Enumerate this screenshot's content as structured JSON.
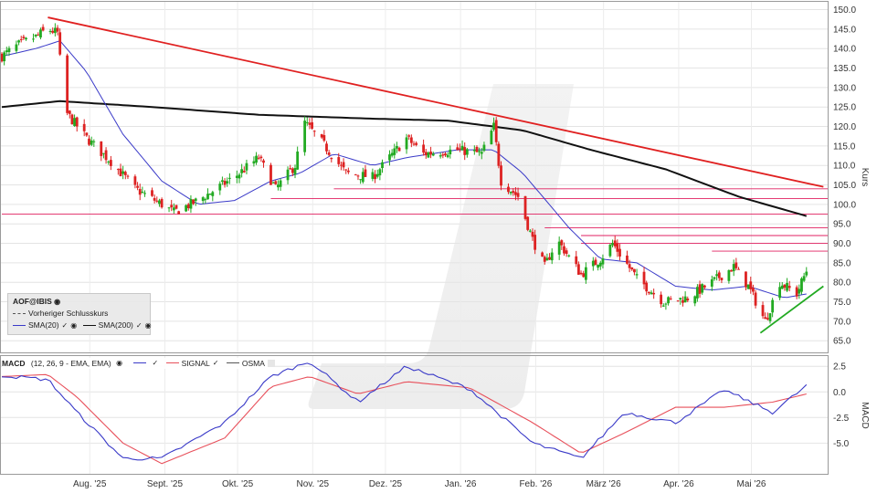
{
  "chart_data": [
    {
      "type": "candlestick",
      "ylabel": "Kurs",
      "ylim": [
        62,
        152
      ],
      "y_ticks": [
        "150.0",
        "145.0",
        "140.0",
        "135.0",
        "130.0",
        "125.0",
        "120.0",
        "115.0",
        "110.0",
        "105.0",
        "100.0",
        "95.0",
        "90.0",
        "85.0",
        "80.0",
        "75.0",
        "70.0",
        "65.0"
      ],
      "x_ticks": [
        "Aug. '25",
        "Sept. '25",
        "Okt. '25",
        "Nov. '25",
        "Dez. '25",
        "Jan. '26",
        "Feb. '26",
        "März '26",
        "Apr. '26",
        "Mai '26"
      ],
      "close_key": [
        {
          "date": "2025-07-01",
          "value": 138
        },
        {
          "date": "2025-07-08",
          "value": 141
        },
        {
          "date": "2025-07-15",
          "value": 143
        },
        {
          "date": "2025-07-20",
          "value": 145
        },
        {
          "date": "2025-07-24",
          "value": 144
        },
        {
          "date": "2025-07-27",
          "value": 124
        },
        {
          "date": "2025-08-05",
          "value": 117
        },
        {
          "date": "2025-08-15",
          "value": 111
        },
        {
          "date": "2025-08-25",
          "value": 104
        },
        {
          "date": "2025-09-05",
          "value": 100
        },
        {
          "date": "2025-09-10",
          "value": 98
        },
        {
          "date": "2025-09-20",
          "value": 101
        },
        {
          "date": "2025-10-05",
          "value": 107
        },
        {
          "date": "2025-10-15",
          "value": 112
        },
        {
          "date": "2025-10-22",
          "value": 104
        },
        {
          "date": "2025-10-30",
          "value": 110
        },
        {
          "date": "2025-11-03",
          "value": 121
        },
        {
          "date": "2025-11-10",
          "value": 116
        },
        {
          "date": "2025-11-20",
          "value": 108
        },
        {
          "date": "2025-12-01",
          "value": 107
        },
        {
          "date": "2025-12-08",
          "value": 112
        },
        {
          "date": "2025-12-15",
          "value": 117
        },
        {
          "date": "2025-12-22",
          "value": 113
        },
        {
          "date": "2026-01-05",
          "value": 114
        },
        {
          "date": "2026-01-15",
          "value": 113
        },
        {
          "date": "2026-01-20",
          "value": 120
        },
        {
          "date": "2026-01-23",
          "value": 106
        },
        {
          "date": "2026-01-30",
          "value": 102
        },
        {
          "date": "2026-02-05",
          "value": 91
        },
        {
          "date": "2026-02-10",
          "value": 84
        },
        {
          "date": "2026-02-15",
          "value": 91
        },
        {
          "date": "2026-02-25",
          "value": 82
        },
        {
          "date": "2026-03-05",
          "value": 86
        },
        {
          "date": "2026-03-10",
          "value": 90
        },
        {
          "date": "2026-03-20",
          "value": 81
        },
        {
          "date": "2026-03-31",
          "value": 75
        },
        {
          "date": "2026-04-10",
          "value": 76
        },
        {
          "date": "2026-04-20",
          "value": 80
        },
        {
          "date": "2026-04-29",
          "value": 84
        },
        {
          "date": "2026-05-05",
          "value": 79
        },
        {
          "date": "2026-05-12",
          "value": 70
        },
        {
          "date": "2026-05-18",
          "value": 80
        },
        {
          "date": "2026-05-25",
          "value": 77
        },
        {
          "date": "2026-05-29",
          "value": 83
        }
      ],
      "sma20_key": [
        {
          "date": "2025-07-01",
          "value": 138
        },
        {
          "date": "2025-07-15",
          "value": 140
        },
        {
          "date": "2025-07-25",
          "value": 142
        },
        {
          "date": "2025-08-05",
          "value": 134
        },
        {
          "date": "2025-08-20",
          "value": 118
        },
        {
          "date": "2025-09-05",
          "value": 106
        },
        {
          "date": "2025-09-20",
          "value": 100
        },
        {
          "date": "2025-10-05",
          "value": 101
        },
        {
          "date": "2025-10-20",
          "value": 106
        },
        {
          "date": "2025-11-01",
          "value": 108
        },
        {
          "date": "2025-11-15",
          "value": 113
        },
        {
          "date": "2025-12-01",
          "value": 110
        },
        {
          "date": "2025-12-15",
          "value": 112
        },
        {
          "date": "2026-01-05",
          "value": 114
        },
        {
          "date": "2026-01-20",
          "value": 114
        },
        {
          "date": "2026-02-01",
          "value": 108
        },
        {
          "date": "2026-02-20",
          "value": 94
        },
        {
          "date": "2026-03-05",
          "value": 86
        },
        {
          "date": "2026-03-20",
          "value": 85
        },
        {
          "date": "2026-04-05",
          "value": 79
        },
        {
          "date": "2026-04-20",
          "value": 78
        },
        {
          "date": "2026-05-05",
          "value": 79
        },
        {
          "date": "2026-05-20",
          "value": 76
        },
        {
          "date": "2026-05-29",
          "value": 77
        }
      ],
      "sma200_key": [
        {
          "date": "2025-07-01",
          "value": 125
        },
        {
          "date": "2025-07-25",
          "value": 126.5
        },
        {
          "date": "2025-09-01",
          "value": 125
        },
        {
          "date": "2025-10-15",
          "value": 123
        },
        {
          "date": "2025-12-01",
          "value": 122
        },
        {
          "date": "2026-01-01",
          "value": 121.5
        },
        {
          "date": "2026-02-01",
          "value": 119
        },
        {
          "date": "2026-03-01",
          "value": 114
        },
        {
          "date": "2026-04-01",
          "value": 109
        },
        {
          "date": "2026-05-01",
          "value": 102
        },
        {
          "date": "2026-05-29",
          "value": 97
        }
      ],
      "trendlines": [
        {
          "color": "#e02020",
          "from": {
            "date": "2025-07-20",
            "value": 148
          },
          "to": {
            "date": "2026-06-05",
            "value": 104.5
          }
        },
        {
          "color": "#22aa22",
          "from": {
            "date": "2026-05-10",
            "value": 67
          },
          "to": {
            "date": "2026-06-05",
            "value": 79
          }
        }
      ],
      "support_lines": [
        {
          "from": "2025-10-20",
          "value": 101.5
        },
        {
          "from": "2025-11-15",
          "value": 104
        },
        {
          "from": "2025-07-01",
          "value": 97.5
        },
        {
          "from": "2026-02-10",
          "value": 94
        },
        {
          "from": "2026-02-25",
          "value": 92
        },
        {
          "from": "2026-02-25",
          "value": 90
        },
        {
          "from": "2026-04-20",
          "value": 88
        }
      ]
    },
    {
      "type": "line",
      "ylabel": "MACD",
      "ylim": [
        -8,
        3.5
      ],
      "y_ticks": [
        "2.5",
        "0.0",
        "-2.5",
        "-5.0"
      ],
      "series": [
        {
          "name": "SIGNAL",
          "color": "#e8505b",
          "values": [
            {
              "date": "2025-07-01",
              "value": 1.5
            },
            {
              "date": "2025-07-20",
              "value": 1.7
            },
            {
              "date": "2025-08-01",
              "value": -0.5
            },
            {
              "date": "2025-08-20",
              "value": -5.0
            },
            {
              "date": "2025-09-05",
              "value": -7.0
            },
            {
              "date": "2025-10-01",
              "value": -4.5
            },
            {
              "date": "2025-10-20",
              "value": 0.5
            },
            {
              "date": "2025-11-05",
              "value": 1.5
            },
            {
              "date": "2025-11-25",
              "value": -0.2
            },
            {
              "date": "2025-12-15",
              "value": 1.0
            },
            {
              "date": "2026-01-10",
              "value": 0.4
            },
            {
              "date": "2026-02-05",
              "value": -3.0
            },
            {
              "date": "2026-02-25",
              "value": -6.0
            },
            {
              "date": "2026-03-15",
              "value": -4.0
            },
            {
              "date": "2026-04-05",
              "value": -1.5
            },
            {
              "date": "2026-04-25",
              "value": -1.5
            },
            {
              "date": "2026-05-15",
              "value": -1.0
            },
            {
              "date": "2026-05-29",
              "value": -0.2
            }
          ]
        },
        {
          "name": "MACD",
          "color": "#3a3ac8",
          "values": [
            {
              "date": "2025-07-01",
              "value": 1.6
            },
            {
              "date": "2025-07-20",
              "value": 1.2
            },
            {
              "date": "2025-08-01",
              "value": -2.0
            },
            {
              "date": "2025-08-20",
              "value": -6.5
            },
            {
              "date": "2025-09-05",
              "value": -6.5
            },
            {
              "date": "2025-10-01",
              "value": -3.0
            },
            {
              "date": "2025-10-20",
              "value": 1.5
            },
            {
              "date": "2025-11-05",
              "value": 3.0
            },
            {
              "date": "2025-11-25",
              "value": -1.0
            },
            {
              "date": "2025-12-15",
              "value": 2.5
            },
            {
              "date": "2026-01-10",
              "value": 0.3
            },
            {
              "date": "2026-02-05",
              "value": -5.0
            },
            {
              "date": "2026-02-25",
              "value": -6.5
            },
            {
              "date": "2026-03-15",
              "value": -2.0
            },
            {
              "date": "2026-04-05",
              "value": -3.0
            },
            {
              "date": "2026-04-25",
              "value": 0.2
            },
            {
              "date": "2026-05-15",
              "value": -2.0
            },
            {
              "date": "2026-05-29",
              "value": 0.6
            }
          ]
        }
      ]
    }
  ],
  "legend": {
    "title": "AOF@IBIS",
    "prev_close": "Vorheriger Schlusskurs",
    "sma20": "SMA(20)",
    "sma200": "SMA(200)"
  },
  "macd_legend": {
    "title": "MACD",
    "params": "(12, 26, 9 - EMA, EMA)",
    "signal": "SIGNAL",
    "osma": "OSMA"
  },
  "colors": {
    "up": "#22aa22",
    "down": "#dd2222",
    "sma20": "#3a3ac8",
    "sma200": "#111111",
    "trend_red": "#e02020",
    "trend_green": "#22aa22",
    "support": "#e02060"
  }
}
